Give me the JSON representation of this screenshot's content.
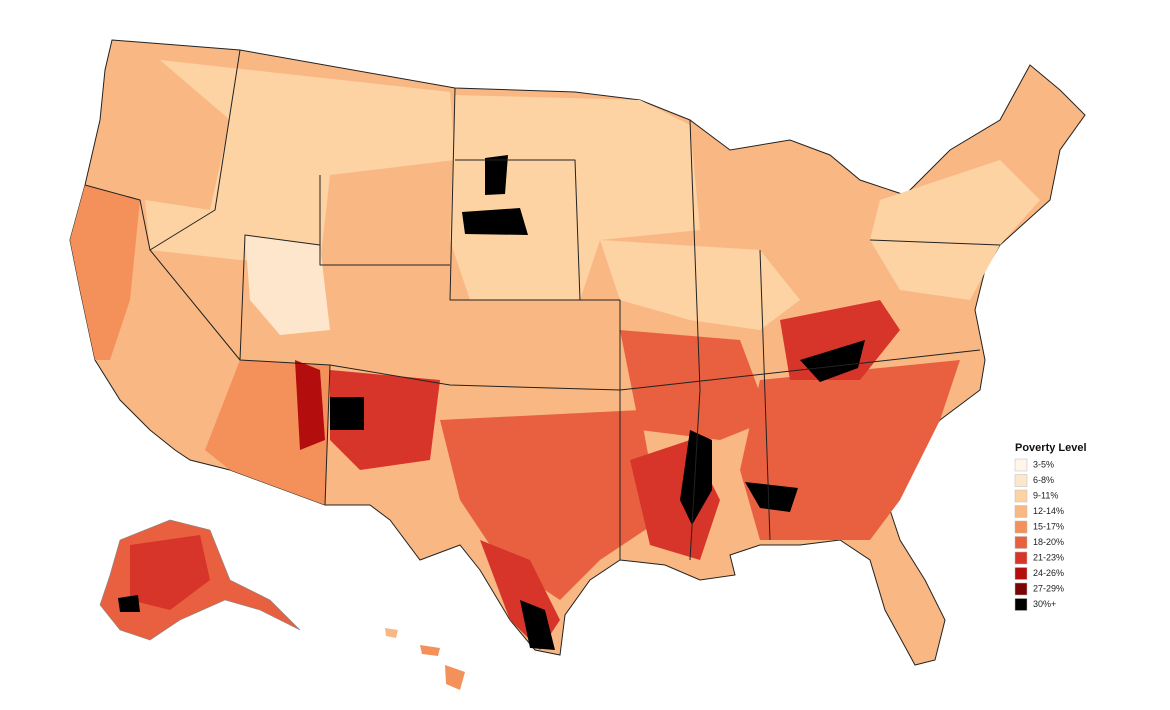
{
  "legend": {
    "title": "Poverty Level",
    "items": [
      {
        "label": "3-5%",
        "color": "#fff5eb"
      },
      {
        "label": "6-8%",
        "color": "#fde6cc"
      },
      {
        "label": "9-11%",
        "color": "#fdd3a4"
      },
      {
        "label": "12-14%",
        "color": "#f9b883"
      },
      {
        "label": "15-17%",
        "color": "#f4905a"
      },
      {
        "label": "18-20%",
        "color": "#e8603f"
      },
      {
        "label": "21-23%",
        "color": "#d8352a"
      },
      {
        "label": "24-26%",
        "color": "#b30d0d"
      },
      {
        "label": "27-29%",
        "color": "#7a0505"
      },
      {
        "label": "30%+",
        "color": "#000000"
      }
    ]
  }
}
